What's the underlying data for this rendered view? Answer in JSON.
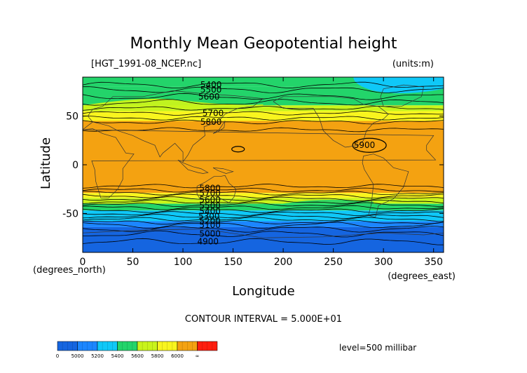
{
  "chart_data": {
    "type": "heatmap",
    "title": "Monthly Mean Geopotential height",
    "file_label": "[HGT_1991-08_NCEP.nc]",
    "units_label": "(units:m)",
    "xlabel": "Longitude",
    "ylabel": "Latitude",
    "x_unit_label": "(degrees_east)",
    "y_unit_label": "(degrees_north)",
    "xlim": [
      0,
      360
    ],
    "ylim": [
      -90,
      90
    ],
    "x_ticks": [
      0,
      50,
      100,
      150,
      200,
      250,
      300,
      350
    ],
    "y_ticks": [
      -50,
      0,
      50
    ],
    "contour_interval_text": "CONTOUR INTERVAL = 5.000E+01",
    "level_text": "level=500 millibar",
    "colorbar": {
      "tick_labels": [
        "0",
        "5000",
        "5200",
        "5400",
        "5600",
        "5800",
        "6000",
        "∞"
      ],
      "colors": [
        "#1565e0",
        "#1c86ff",
        "#0fc8f8",
        "#23d46a",
        "#c9f41b",
        "#f9f51e",
        "#f4a211",
        "#ff1e0f"
      ]
    },
    "color_bands": [
      {
        "lat_top": 90,
        "lat_bottom": 80,
        "value": 5400
      },
      {
        "lat_top": 80,
        "lat_bottom": 61,
        "value": 5500
      },
      {
        "lat_top": 61,
        "lat_bottom": 55,
        "value": 5600
      },
      {
        "lat_top": 55,
        "lat_bottom": 45,
        "value": 5700
      },
      {
        "lat_top": 45,
        "lat_bottom": -29,
        "value": 5850
      },
      {
        "lat_top": -29,
        "lat_bottom": -34,
        "value": 5750
      },
      {
        "lat_top": -34,
        "lat_bottom": -40,
        "value": 5650
      },
      {
        "lat_top": -40,
        "lat_bottom": -47,
        "value": 5550
      },
      {
        "lat_top": -47,
        "lat_bottom": -58,
        "value": 5350
      },
      {
        "lat_top": -58,
        "lat_bottom": -64,
        "value": 5150
      },
      {
        "lat_top": -64,
        "lat_bottom": -90,
        "value": 4950
      }
    ],
    "contour_labels": [
      {
        "text": "5400",
        "lon": 128,
        "lat": 82
      },
      {
        "text": "5500",
        "lon": 128,
        "lat": 77
      },
      {
        "text": "5600",
        "lon": 126,
        "lat": 70
      },
      {
        "text": "5700",
        "lon": 130,
        "lat": 53
      },
      {
        "text": "5800",
        "lon": 128,
        "lat": 44
      },
      {
        "text": "5900",
        "lon": 281,
        "lat": 20
      },
      {
        "text": "5800",
        "lon": 127,
        "lat": -24
      },
      {
        "text": "5700",
        "lon": 127,
        "lat": -29
      },
      {
        "text": "5600",
        "lon": 127,
        "lat": -36
      },
      {
        "text": "5500",
        "lon": 127,
        "lat": -42
      },
      {
        "text": "5400",
        "lon": 127,
        "lat": -48
      },
      {
        "text": "5300",
        "lon": 126,
        "lat": -53
      },
      {
        "text": "5200",
        "lon": 127,
        "lat": -58
      },
      {
        "text": "5100",
        "lon": 127,
        "lat": -62
      },
      {
        "text": "5000",
        "lon": 127,
        "lat": -71
      },
      {
        "text": "4900",
        "lon": 125,
        "lat": -79
      }
    ],
    "grid": false
  }
}
